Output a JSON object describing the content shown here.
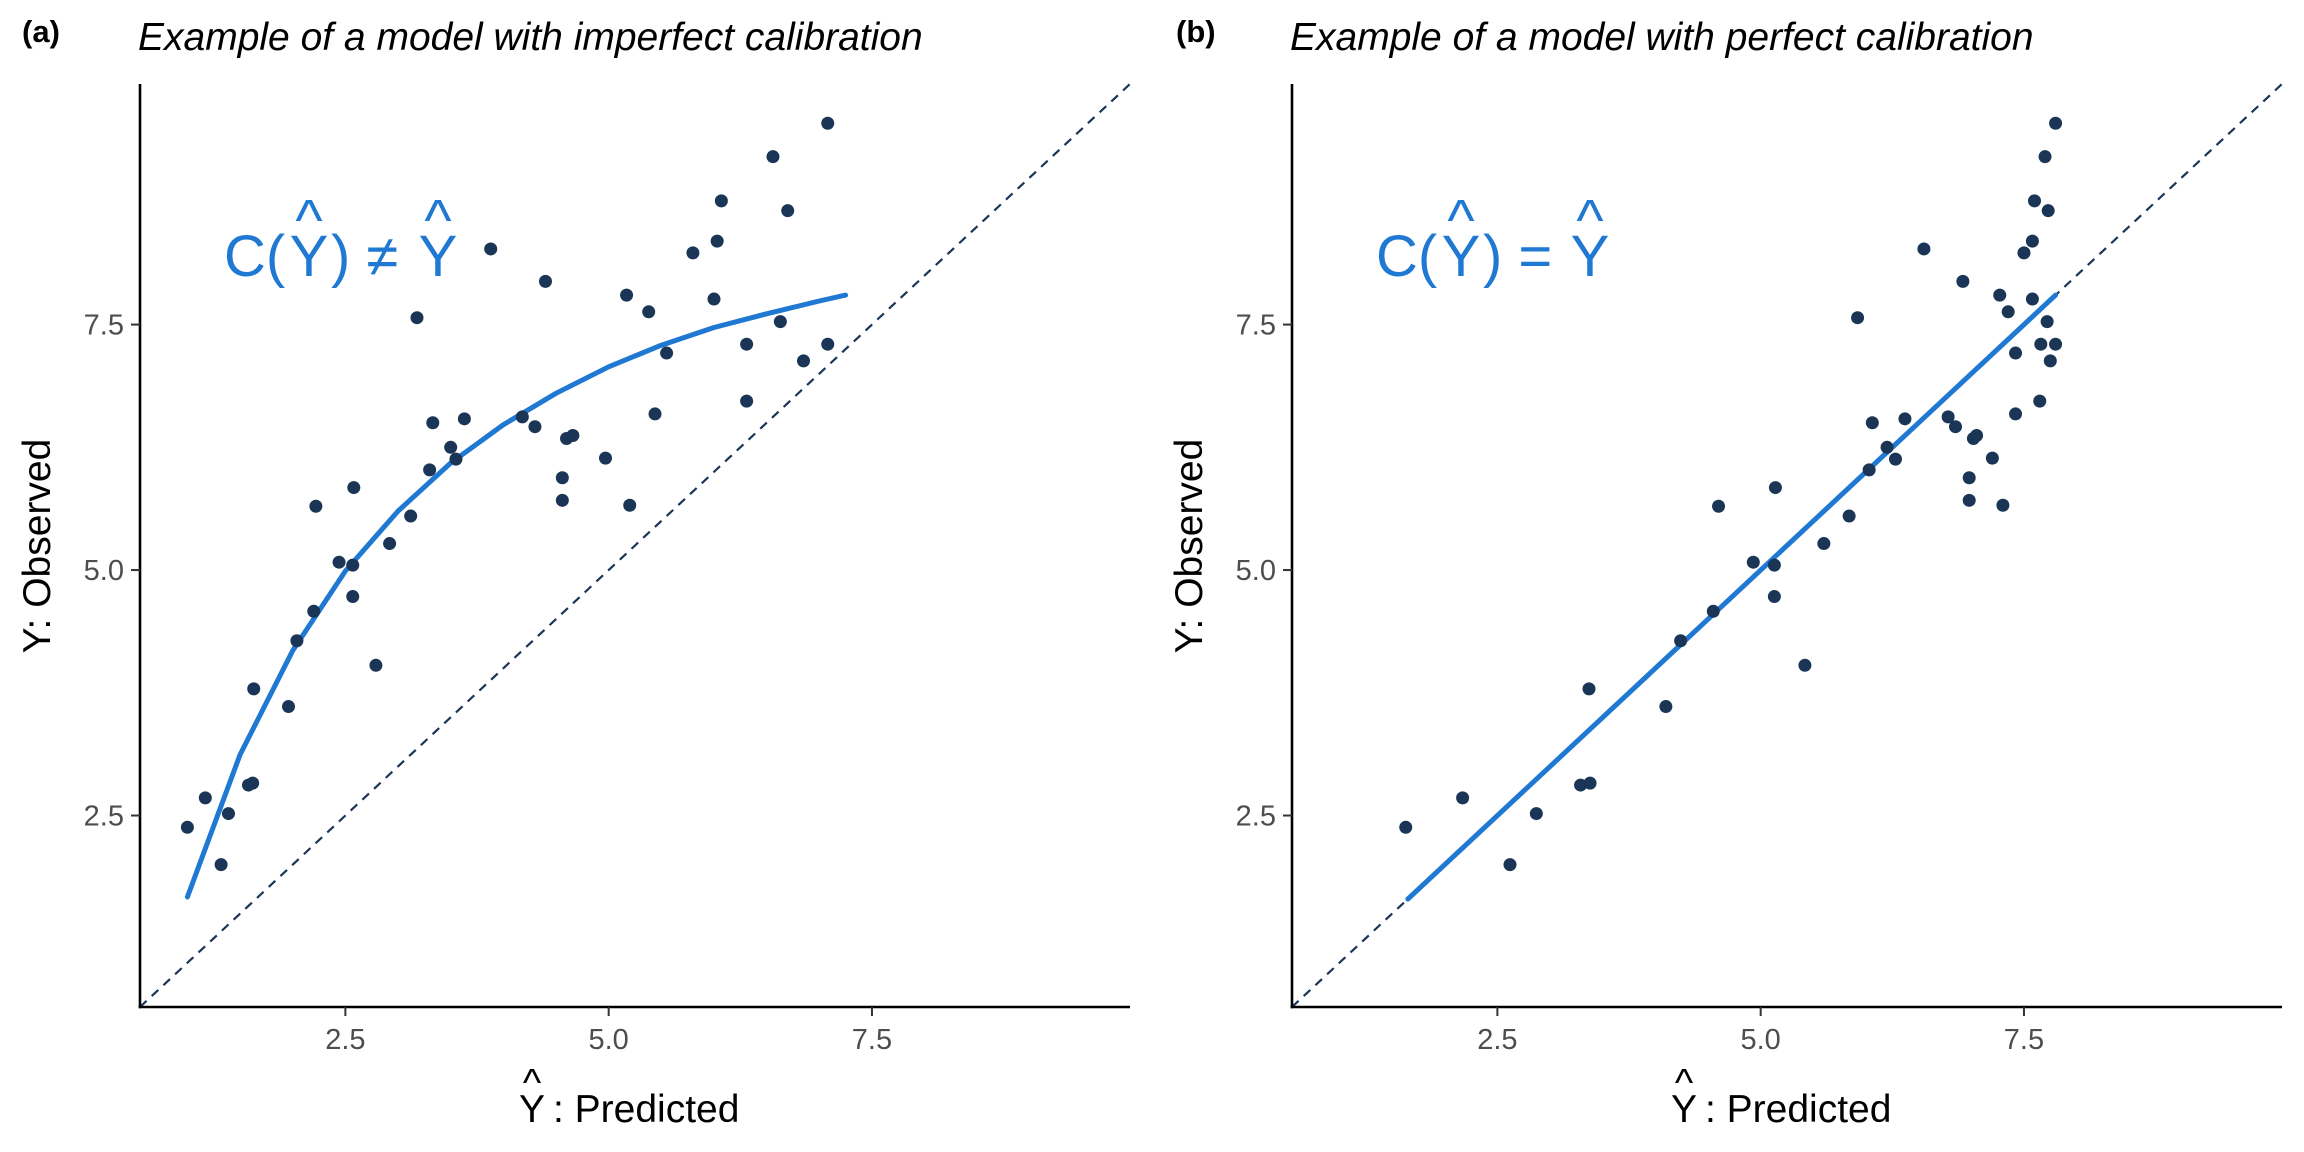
{
  "colors": {
    "points": "#1a3556",
    "curve": "#1f78d1",
    "diagonal": "#1a3556",
    "annotation": "#1f78d1"
  },
  "chart_data": [
    {
      "panel": "(a)",
      "type": "scatter",
      "title": "Example of a model with imperfect calibration",
      "xlabel_hat": "^",
      "xlabel_symbol": "Y",
      "xlabel_text": ": Predicted",
      "ylabel": "Y: Observed",
      "annotation_prefix": "C(",
      "annotation_hat": "^",
      "annotation_symbol": "Y",
      "annotation_mid": ") ≠ ",
      "annotation_hat2": "^",
      "annotation_symbol2": "Y",
      "xlim": [
        0.55,
        9.95
      ],
      "ylim": [
        0.55,
        9.95
      ],
      "xticks": [
        {
          "value": 2.5,
          "label": "2.5"
        },
        {
          "value": 5.0,
          "label": "5.0"
        },
        {
          "value": 7.5,
          "label": "7.5"
        }
      ],
      "yticks": [
        {
          "value": 2.5,
          "label": "2.5"
        },
        {
          "value": 5.0,
          "label": "5.0"
        },
        {
          "value": 7.5,
          "label": "7.5"
        }
      ],
      "reference_line": "y = x (dashed)",
      "grid": false,
      "calibration_curve": {
        "x": [
          1.0,
          1.5,
          2.0,
          2.5,
          3.0,
          3.5,
          4.0,
          4.5,
          5.0,
          5.5,
          6.0,
          6.5,
          7.0,
          7.25
        ],
        "y": [
          1.67,
          3.12,
          4.18,
          4.99,
          5.6,
          6.09,
          6.48,
          6.8,
          7.07,
          7.29,
          7.47,
          7.61,
          7.74,
          7.8
        ]
      },
      "points": [
        {
          "x": 1.0,
          "y": 2.38
        },
        {
          "x": 1.17,
          "y": 2.68
        },
        {
          "x": 1.32,
          "y": 2.0
        },
        {
          "x": 1.39,
          "y": 2.52
        },
        {
          "x": 1.58,
          "y": 2.81
        },
        {
          "x": 1.62,
          "y": 2.83
        },
        {
          "x": 1.63,
          "y": 3.79
        },
        {
          "x": 1.96,
          "y": 3.61
        },
        {
          "x": 2.04,
          "y": 4.28
        },
        {
          "x": 2.2,
          "y": 4.58
        },
        {
          "x": 2.22,
          "y": 5.65
        },
        {
          "x": 2.44,
          "y": 5.08
        },
        {
          "x": 2.57,
          "y": 5.05
        },
        {
          "x": 2.57,
          "y": 4.73
        },
        {
          "x": 2.58,
          "y": 5.84
        },
        {
          "x": 2.79,
          "y": 4.03
        },
        {
          "x": 2.92,
          "y": 5.27
        },
        {
          "x": 3.12,
          "y": 5.55
        },
        {
          "x": 3.18,
          "y": 7.57
        },
        {
          "x": 3.3,
          "y": 6.02
        },
        {
          "x": 3.33,
          "y": 6.5
        },
        {
          "x": 3.5,
          "y": 6.25
        },
        {
          "x": 3.55,
          "y": 6.13
        },
        {
          "x": 3.63,
          "y": 6.54
        },
        {
          "x": 3.88,
          "y": 8.27
        },
        {
          "x": 4.18,
          "y": 6.56
        },
        {
          "x": 4.3,
          "y": 6.46
        },
        {
          "x": 4.4,
          "y": 7.94
        },
        {
          "x": 4.56,
          "y": 5.94
        },
        {
          "x": 4.56,
          "y": 5.71
        },
        {
          "x": 4.6,
          "y": 6.34
        },
        {
          "x": 4.66,
          "y": 6.37
        },
        {
          "x": 4.97,
          "y": 6.14
        },
        {
          "x": 5.17,
          "y": 7.8
        },
        {
          "x": 5.2,
          "y": 5.66
        },
        {
          "x": 5.38,
          "y": 7.63
        },
        {
          "x": 5.44,
          "y": 6.59
        },
        {
          "x": 5.55,
          "y": 7.21
        },
        {
          "x": 5.8,
          "y": 8.23
        },
        {
          "x": 6.0,
          "y": 7.76
        },
        {
          "x": 6.03,
          "y": 8.35
        },
        {
          "x": 6.07,
          "y": 8.76
        },
        {
          "x": 6.31,
          "y": 6.72
        },
        {
          "x": 6.31,
          "y": 7.3
        },
        {
          "x": 6.56,
          "y": 9.21
        },
        {
          "x": 6.63,
          "y": 7.53
        },
        {
          "x": 6.7,
          "y": 8.66
        },
        {
          "x": 6.85,
          "y": 7.13
        },
        {
          "x": 7.08,
          "y": 7.3
        },
        {
          "x": 7.08,
          "y": 9.55
        }
      ]
    },
    {
      "panel": "(b)",
      "type": "scatter",
      "title": "Example of a model with perfect calibration",
      "xlabel_hat": "^",
      "xlabel_symbol": "Y",
      "xlabel_text": ": Predicted",
      "ylabel": "Y: Observed",
      "annotation_prefix": "C(",
      "annotation_hat": "^",
      "annotation_symbol": "Y",
      "annotation_mid": ") = ",
      "annotation_hat2": "^",
      "annotation_symbol2": "Y",
      "xlim": [
        0.55,
        9.95
      ],
      "ylim": [
        0.55,
        9.95
      ],
      "xticks": [
        {
          "value": 2.5,
          "label": "2.5"
        },
        {
          "value": 5.0,
          "label": "5.0"
        },
        {
          "value": 7.5,
          "label": "7.5"
        }
      ],
      "yticks": [
        {
          "value": 2.5,
          "label": "2.5"
        },
        {
          "value": 5.0,
          "label": "5.0"
        },
        {
          "value": 7.5,
          "label": "7.5"
        }
      ],
      "reference_line": "y = x (dashed)",
      "grid": false,
      "calibration_curve": {
        "x": [
          1.65,
          7.8
        ],
        "y": [
          1.65,
          7.8
        ]
      },
      "points": [
        {
          "x": 1.63,
          "y": 2.38
        },
        {
          "x": 2.17,
          "y": 2.68
        },
        {
          "x": 2.62,
          "y": 2.0
        },
        {
          "x": 2.87,
          "y": 2.52
        },
        {
          "x": 3.29,
          "y": 2.81
        },
        {
          "x": 3.38,
          "y": 2.83
        },
        {
          "x": 3.37,
          "y": 3.79
        },
        {
          "x": 4.1,
          "y": 3.61
        },
        {
          "x": 4.24,
          "y": 4.28
        },
        {
          "x": 4.55,
          "y": 4.58
        },
        {
          "x": 4.6,
          "y": 5.65
        },
        {
          "x": 4.93,
          "y": 5.08
        },
        {
          "x": 5.13,
          "y": 5.05
        },
        {
          "x": 5.13,
          "y": 4.73
        },
        {
          "x": 5.14,
          "y": 5.84
        },
        {
          "x": 5.42,
          "y": 4.03
        },
        {
          "x": 5.6,
          "y": 5.27
        },
        {
          "x": 5.84,
          "y": 5.55
        },
        {
          "x": 5.92,
          "y": 7.57
        },
        {
          "x": 6.03,
          "y": 6.02
        },
        {
          "x": 6.06,
          "y": 6.5
        },
        {
          "x": 6.2,
          "y": 6.25
        },
        {
          "x": 6.28,
          "y": 6.13
        },
        {
          "x": 6.37,
          "y": 6.54
        },
        {
          "x": 6.55,
          "y": 8.27
        },
        {
          "x": 6.78,
          "y": 6.56
        },
        {
          "x": 6.85,
          "y": 6.46
        },
        {
          "x": 6.92,
          "y": 7.94
        },
        {
          "x": 6.98,
          "y": 5.94
        },
        {
          "x": 6.98,
          "y": 5.71
        },
        {
          "x": 7.02,
          "y": 6.34
        },
        {
          "x": 7.05,
          "y": 6.37
        },
        {
          "x": 7.2,
          "y": 6.14
        },
        {
          "x": 7.27,
          "y": 7.8
        },
        {
          "x": 7.3,
          "y": 5.66
        },
        {
          "x": 7.35,
          "y": 7.63
        },
        {
          "x": 7.42,
          "y": 6.59
        },
        {
          "x": 7.42,
          "y": 7.21
        },
        {
          "x": 7.5,
          "y": 8.23
        },
        {
          "x": 7.58,
          "y": 7.76
        },
        {
          "x": 7.58,
          "y": 8.35
        },
        {
          "x": 7.6,
          "y": 8.76
        },
        {
          "x": 7.65,
          "y": 6.72
        },
        {
          "x": 7.66,
          "y": 7.3
        },
        {
          "x": 7.7,
          "y": 9.21
        },
        {
          "x": 7.72,
          "y": 7.53
        },
        {
          "x": 7.73,
          "y": 8.66
        },
        {
          "x": 7.75,
          "y": 7.13
        },
        {
          "x": 7.8,
          "y": 7.3
        },
        {
          "x": 7.8,
          "y": 9.55
        }
      ]
    }
  ]
}
